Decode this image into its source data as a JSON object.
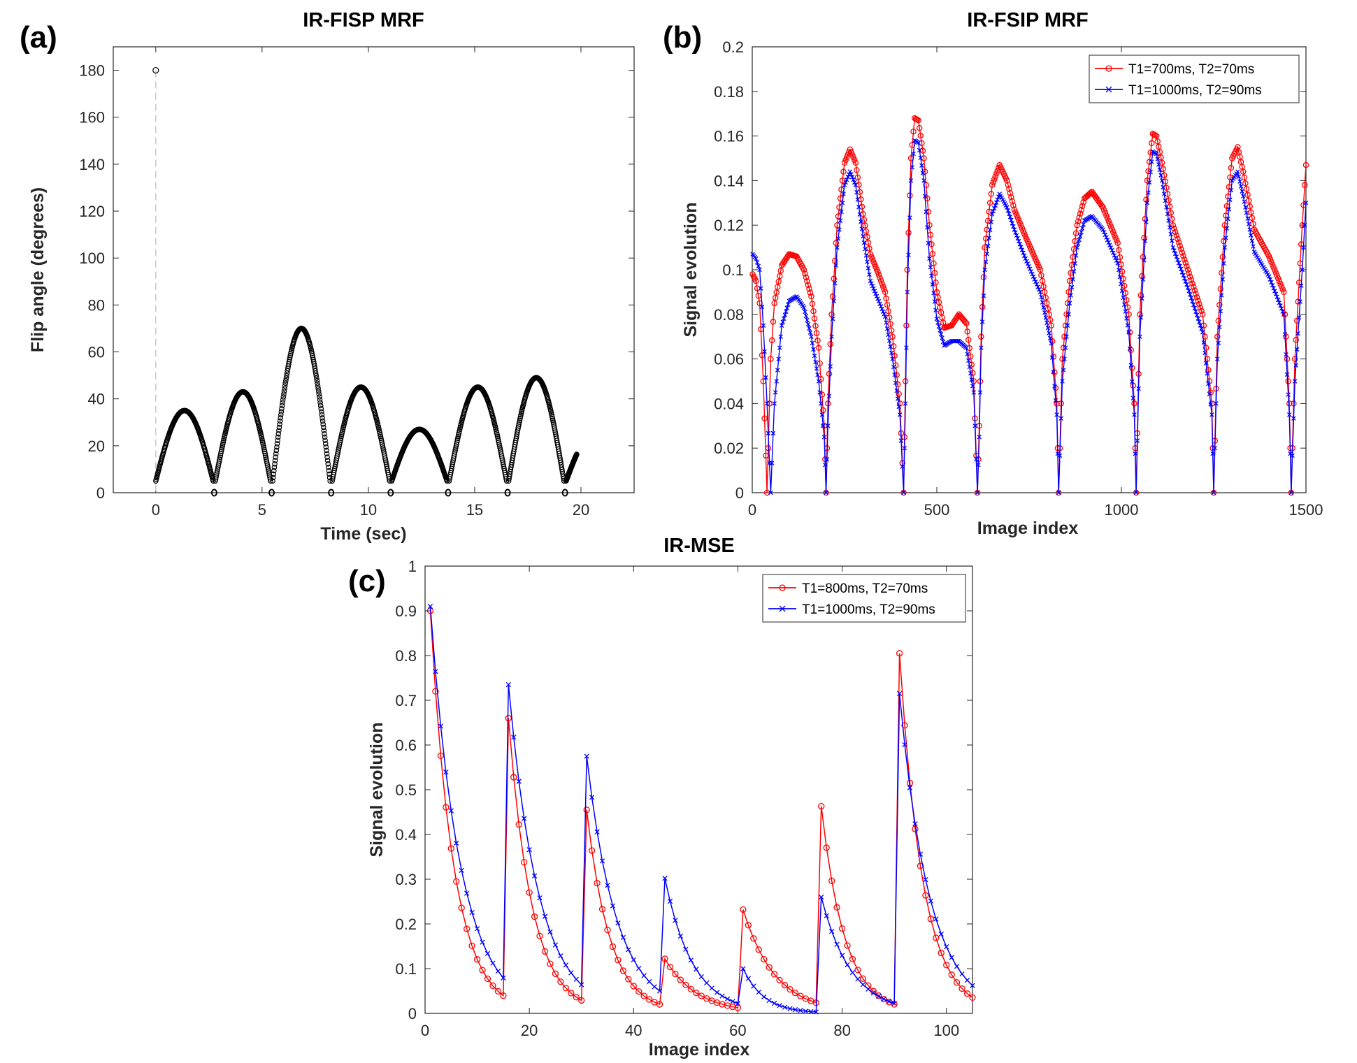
{
  "chart_data": [
    {
      "panel_label": "(a)",
      "type": "scatter",
      "title": "IR-FISP MRF",
      "xlabel": "Time (sec)",
      "ylabel": "Flip angle (degrees)",
      "xlim": [
        -2,
        22.5
      ],
      "ylim": [
        0,
        190
      ],
      "xticks": [
        0,
        5,
        10,
        15,
        20
      ],
      "yticks": [
        0,
        20,
        40,
        60,
        80,
        100,
        120,
        140,
        160,
        180
      ],
      "grid": false,
      "inversion_marker": {
        "x": 0,
        "y": 180
      },
      "segments": [
        {
          "x_start": 0.0,
          "x_end": 2.7,
          "peak": 35
        },
        {
          "x_start": 2.8,
          "x_end": 5.4,
          "peak": 43
        },
        {
          "x_start": 5.5,
          "x_end": 8.2,
          "peak": 70
        },
        {
          "x_start": 8.3,
          "x_end": 11.0,
          "peak": 45
        },
        {
          "x_start": 11.1,
          "x_end": 13.7,
          "peak": 27
        },
        {
          "x_start": 13.8,
          "x_end": 16.5,
          "peak": 45
        },
        {
          "x_start": 16.6,
          "x_end": 19.2,
          "peak": 49
        },
        {
          "x_start": 19.3,
          "x_end": 19.8,
          "peak": 25
        }
      ],
      "zero_markers_x": [
        2.75,
        5.45,
        8.25,
        11.05,
        13.75,
        16.55,
        19.25
      ]
    },
    {
      "panel_label": "(b)",
      "type": "line",
      "title": "IR-FSIP MRF",
      "xlabel": "Image index",
      "ylabel": "Signal evolution",
      "xlim": [
        0,
        1500
      ],
      "ylim": [
        0,
        0.2
      ],
      "xticks": [
        0,
        500,
        1000,
        1500
      ],
      "yticks": [
        0,
        0.02,
        0.04,
        0.06,
        0.08,
        0.1,
        0.12,
        0.14,
        0.16,
        0.18,
        0.2
      ],
      "grid": false,
      "legend": "top-right",
      "series": [
        {
          "name": "T1=700ms, T2=70ms",
          "color": "#ff0000",
          "marker": "circle",
          "x": [
            1,
            10,
            20,
            30,
            40,
            50,
            60,
            80,
            100,
            120,
            140,
            160,
            180,
            195,
            200,
            205,
            215,
            230,
            250,
            265,
            280,
            300,
            320,
            340,
            360,
            380,
            400,
            410,
            415,
            420,
            430,
            440,
            450,
            465,
            480,
            500,
            520,
            540,
            560,
            580,
            600,
            610,
            615,
            620,
            630,
            650,
            670,
            690,
            710,
            740,
            780,
            810,
            825,
            830,
            840,
            860,
            880,
            900,
            920,
            950,
            990,
            1020,
            1035,
            1040,
            1050,
            1070,
            1085,
            1095,
            1110,
            1140,
            1180,
            1220,
            1245,
            1250,
            1260,
            1280,
            1300,
            1315,
            1330,
            1360,
            1400,
            1440,
            1455,
            1460,
            1470,
            1490,
            1500
          ],
          "y": [
            0.098,
            0.095,
            0.085,
            0.05,
            0.0,
            0.06,
            0.085,
            0.102,
            0.107,
            0.106,
            0.1,
            0.088,
            0.065,
            0.03,
            0.0,
            0.04,
            0.08,
            0.12,
            0.148,
            0.154,
            0.148,
            0.125,
            0.107,
            0.099,
            0.09,
            0.07,
            0.04,
            0.0,
            0.05,
            0.1,
            0.15,
            0.168,
            0.167,
            0.15,
            0.12,
            0.09,
            0.074,
            0.075,
            0.08,
            0.076,
            0.05,
            0.0,
            0.03,
            0.07,
            0.11,
            0.138,
            0.147,
            0.14,
            0.127,
            0.115,
            0.1,
            0.075,
            0.04,
            0.0,
            0.06,
            0.095,
            0.12,
            0.132,
            0.135,
            0.128,
            0.112,
            0.08,
            0.04,
            0.0,
            0.08,
            0.14,
            0.161,
            0.16,
            0.148,
            0.12,
            0.1,
            0.08,
            0.04,
            0.0,
            0.07,
            0.12,
            0.15,
            0.155,
            0.144,
            0.118,
            0.106,
            0.09,
            0.04,
            0.0,
            0.06,
            0.12,
            0.147
          ]
        },
        {
          "name": "T1=1000ms, T2=90ms",
          "color": "#0000ff",
          "marker": "x",
          "x": [
            1,
            10,
            20,
            30,
            40,
            50,
            60,
            80,
            100,
            120,
            140,
            160,
            180,
            195,
            200,
            205,
            215,
            230,
            250,
            265,
            280,
            300,
            320,
            340,
            360,
            380,
            400,
            410,
            415,
            420,
            430,
            440,
            450,
            465,
            480,
            500,
            520,
            540,
            560,
            580,
            600,
            610,
            615,
            620,
            630,
            650,
            670,
            690,
            710,
            740,
            780,
            810,
            825,
            830,
            840,
            860,
            880,
            900,
            920,
            950,
            990,
            1020,
            1035,
            1040,
            1050,
            1070,
            1085,
            1095,
            1110,
            1140,
            1180,
            1220,
            1245,
            1250,
            1260,
            1280,
            1300,
            1315,
            1330,
            1360,
            1400,
            1440,
            1455,
            1460,
            1470,
            1490,
            1500
          ],
          "y": [
            0.107,
            0.105,
            0.1,
            0.075,
            0.04,
            0.0,
            0.04,
            0.075,
            0.086,
            0.088,
            0.083,
            0.07,
            0.05,
            0.025,
            0.0,
            0.03,
            0.07,
            0.11,
            0.138,
            0.144,
            0.138,
            0.115,
            0.095,
            0.087,
            0.079,
            0.06,
            0.035,
            0.0,
            0.04,
            0.09,
            0.14,
            0.158,
            0.157,
            0.14,
            0.105,
            0.078,
            0.066,
            0.068,
            0.068,
            0.065,
            0.045,
            0.0,
            0.025,
            0.065,
            0.1,
            0.125,
            0.134,
            0.128,
            0.118,
            0.105,
            0.09,
            0.067,
            0.035,
            0.0,
            0.05,
            0.085,
            0.11,
            0.122,
            0.124,
            0.118,
            0.103,
            0.072,
            0.035,
            0.0,
            0.07,
            0.13,
            0.153,
            0.152,
            0.14,
            0.11,
            0.092,
            0.072,
            0.035,
            0.0,
            0.06,
            0.11,
            0.14,
            0.144,
            0.133,
            0.108,
            0.097,
            0.08,
            0.035,
            0.0,
            0.05,
            0.1,
            0.13
          ]
        }
      ]
    },
    {
      "panel_label": "(c)",
      "type": "line",
      "title": "IR-MSE",
      "xlabel": "Image index",
      "ylabel": "Signal evolution",
      "xlim": [
        0,
        105
      ],
      "ylim": [
        0,
        1
      ],
      "xticks": [
        0,
        20,
        40,
        60,
        80,
        100
      ],
      "yticks": [
        0,
        0.1,
        0.2,
        0.3,
        0.4,
        0.5,
        0.6,
        0.7,
        0.8,
        0.9,
        1
      ],
      "grid": false,
      "legend": "top-right",
      "series": [
        {
          "name": "T1=800ms, T2=70ms",
          "color": "#ff0000",
          "marker": "circle",
          "start_values": [
            0.9,
            0.66,
            0.455,
            0.122,
            0.232,
            0.463,
            0.805
          ],
          "ratios": [
            0.8,
            0.8,
            0.8,
            0.85,
            0.85,
            0.8,
            0.8
          ],
          "points_per_block": 15
        },
        {
          "name": "T1=1000ms, T2=90ms",
          "color": "#0000ff",
          "marker": "x",
          "start_values": [
            0.91,
            0.735,
            0.575,
            0.302,
            0.1,
            0.26,
            0.715
          ],
          "ratios": [
            0.84,
            0.84,
            0.84,
            0.83,
            0.78,
            0.84,
            0.84
          ],
          "points_per_block": 15
        }
      ]
    }
  ]
}
